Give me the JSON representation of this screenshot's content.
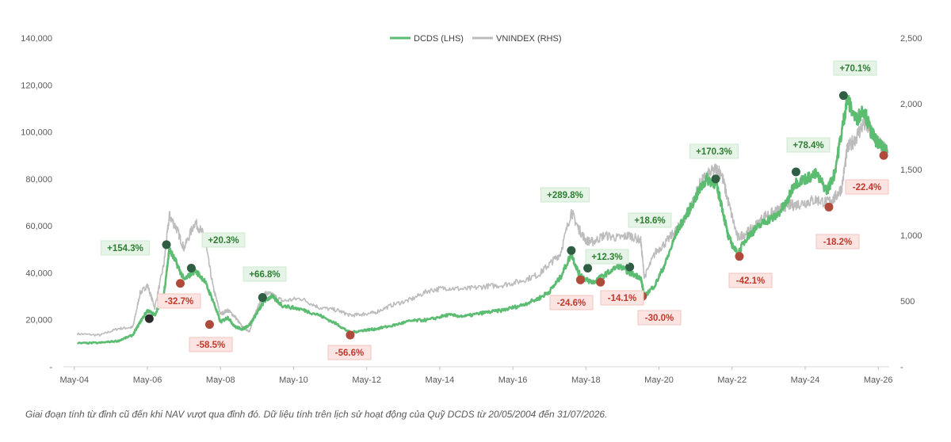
{
  "chart_data": {
    "type": "line",
    "legend": {
      "position": "top-center",
      "entries": [
        "DCDS (LHS)",
        "VNINDEX (RHS)"
      ]
    },
    "x_axis": {
      "ticks": [
        "May-04",
        "May-06",
        "May-08",
        "May-10",
        "May-12",
        "May-14",
        "May-16",
        "May-18",
        "May-20",
        "May-22",
        "May-24",
        "May-26"
      ],
      "range": [
        2004.0,
        2026.6
      ]
    },
    "y_left": {
      "ticks": [
        "-",
        "20,000",
        "40,000",
        "60,000",
        "80,000",
        "100,000",
        "120,000",
        "140,000"
      ],
      "range": [
        0,
        140000
      ]
    },
    "y_right": {
      "ticks": [
        "-",
        "500",
        "1,000",
        "1,500",
        "2,000",
        "2,500"
      ],
      "range": [
        0,
        2500
      ]
    },
    "grid": false,
    "colors": {
      "dcds": "#5cbd72",
      "vnindex": "#bcbcbc",
      "peak_marker": "#2f5e45",
      "trough_marker": "#b04a3b",
      "gain_text": "#2e7d32",
      "gain_fill": "#e6f4e7",
      "loss_text": "#c0392b",
      "loss_fill": "#fbe4e1"
    },
    "series": [
      {
        "name": "DCDS (LHS)",
        "axis": "left",
        "x": [
          2004.38,
          2005.0,
          2005.5,
          2005.9,
          2006.1,
          2006.3,
          2006.5,
          2006.75,
          2006.9,
          2007.1,
          2007.3,
          2007.6,
          2007.85,
          2008.1,
          2008.3,
          2008.5,
          2008.7,
          2008.9,
          2009.1,
          2009.3,
          2009.5,
          2009.7,
          2010.0,
          2010.5,
          2011.0,
          2011.5,
          2011.85,
          2012.2,
          2012.5,
          2013.0,
          2013.5,
          2014.0,
          2014.5,
          2015.0,
          2015.5,
          2016.0,
          2016.5,
          2017.0,
          2017.3,
          2017.6,
          2017.9,
          2018.1,
          2018.3,
          2018.5,
          2018.8,
          2019.2,
          2019.5,
          2019.8,
          2019.9,
          2020.2,
          2020.5,
          2020.8,
          2021.1,
          2021.4,
          2021.6,
          2021.85,
          2022.0,
          2022.2,
          2022.45,
          2022.7,
          2022.9,
          2023.2,
          2023.5,
          2023.8,
          2024.0,
          2024.3,
          2024.6,
          2024.9,
          2025.1,
          2025.3,
          2025.45,
          2025.7,
          2025.9,
          2026.1,
          2026.3,
          2026.55
        ],
        "values": [
          10000,
          10200,
          11000,
          13500,
          19000,
          24000,
          22000,
          31000,
          50000,
          44000,
          37000,
          41000,
          37000,
          28000,
          19000,
          21000,
          17000,
          16000,
          18000,
          23000,
          28000,
          30000,
          26000,
          24500,
          22000,
          18000,
          14500,
          15500,
          16000,
          17500,
          19500,
          20000,
          22000,
          21500,
          23000,
          24000,
          26000,
          29000,
          32000,
          38000,
          48000,
          40000,
          37000,
          36000,
          39000,
          43000,
          40000,
          38000,
          30000,
          35000,
          45000,
          58000,
          66000,
          75000,
          80000,
          78000,
          70000,
          55000,
          48000,
          55000,
          58000,
          62000,
          64000,
          70000,
          78000,
          80000,
          82000,
          75000,
          82000,
          100000,
          114000,
          105000,
          110000,
          100000,
          95000,
          91000
        ]
      },
      {
        "name": "VNINDEX (RHS)",
        "axis": "right",
        "x": [
          2004.38,
          2005.0,
          2005.5,
          2005.9,
          2006.1,
          2006.3,
          2006.5,
          2006.75,
          2006.9,
          2007.1,
          2007.3,
          2007.6,
          2007.85,
          2008.1,
          2008.3,
          2008.5,
          2008.7,
          2008.9,
          2009.1,
          2009.3,
          2009.5,
          2009.7,
          2010.0,
          2010.5,
          2011.0,
          2011.5,
          2011.85,
          2012.2,
          2012.5,
          2013.0,
          2013.5,
          2014.0,
          2014.5,
          2015.0,
          2015.5,
          2016.0,
          2016.5,
          2017.0,
          2017.3,
          2017.6,
          2017.9,
          2018.1,
          2018.3,
          2018.5,
          2018.8,
          2019.2,
          2019.5,
          2019.8,
          2019.9,
          2020.2,
          2020.5,
          2020.8,
          2021.1,
          2021.4,
          2021.6,
          2021.85,
          2022.0,
          2022.2,
          2022.45,
          2022.7,
          2022.9,
          2023.2,
          2023.5,
          2023.8,
          2024.0,
          2024.3,
          2024.6,
          2024.9,
          2025.1,
          2025.3,
          2025.45,
          2025.7,
          2025.9,
          2026.1,
          2026.3,
          2026.55
        ],
        "values": [
          250,
          240,
          290,
          300,
          560,
          620,
          450,
          780,
          1150,
          1050,
          900,
          1100,
          1000,
          600,
          400,
          430,
          380,
          300,
          270,
          450,
          560,
          550,
          500,
          520,
          450,
          430,
          390,
          400,
          410,
          470,
          510,
          580,
          600,
          590,
          610,
          620,
          650,
          700,
          780,
          860,
          1180,
          1050,
          960,
          950,
          1000,
          980,
          1000,
          960,
          680,
          870,
          950,
          1050,
          1160,
          1380,
          1450,
          1500,
          1480,
          1250,
          980,
          1020,
          1060,
          1150,
          1180,
          1230,
          1230,
          1250,
          1270,
          1250,
          1280,
          1360,
          1650,
          1750,
          1850,
          1800,
          1700,
          1650
        ]
      }
    ],
    "annotations": [
      {
        "x": 2006.35,
        "y": 20500,
        "kind": "trough",
        "label": "+154.3%"
      },
      {
        "x": 2006.82,
        "y": 52000,
        "kind": "peak",
        "label": ""
      },
      {
        "x": 2007.2,
        "y": 35500,
        "kind": "trough",
        "label": "-32.7%"
      },
      {
        "x": 2007.5,
        "y": 42000,
        "kind": "peak",
        "label": "+20.3%"
      },
      {
        "x": 2008.0,
        "y": 18000,
        "kind": "trough",
        "label": "-58.5%"
      },
      {
        "x": 2009.45,
        "y": 29500,
        "kind": "peak",
        "label": "+66.8%"
      },
      {
        "x": 2011.85,
        "y": 13500,
        "kind": "trough",
        "label": "-56.6%"
      },
      {
        "x": 2017.9,
        "y": 49500,
        "kind": "peak",
        "label": "+289.8%"
      },
      {
        "x": 2018.15,
        "y": 37000,
        "kind": "trough",
        "label": "-24.6%"
      },
      {
        "x": 2018.35,
        "y": 42000,
        "kind": "peak",
        "label": "+12.3%"
      },
      {
        "x": 2018.7,
        "y": 36000,
        "kind": "trough",
        "label": "-14.1%"
      },
      {
        "x": 2019.5,
        "y": 42500,
        "kind": "peak",
        "label": "+18.6%"
      },
      {
        "x": 2019.85,
        "y": 30000,
        "kind": "trough",
        "label": "-30.0%"
      },
      {
        "x": 2021.85,
        "y": 80000,
        "kind": "peak",
        "label": "+170.3%"
      },
      {
        "x": 2022.5,
        "y": 47000,
        "kind": "trough",
        "label": "-42.1%"
      },
      {
        "x": 2024.05,
        "y": 83000,
        "kind": "peak",
        "label": "+78.4%"
      },
      {
        "x": 2024.95,
        "y": 68000,
        "kind": "trough",
        "label": "-18.2%"
      },
      {
        "x": 2025.35,
        "y": 115500,
        "kind": "peak",
        "label": "+70.1%"
      },
      {
        "x": 2026.45,
        "y": 90000,
        "kind": "trough",
        "label": "-22.4%"
      }
    ]
  },
  "footnote": "Giai đoạn tính từ đỉnh cũ đến khi NAV vượt qua đỉnh đó. Dữ liệu tính trên lịch sử hoạt động của Quỹ DCDS từ 20/05/2004 đến 31/07/2026."
}
